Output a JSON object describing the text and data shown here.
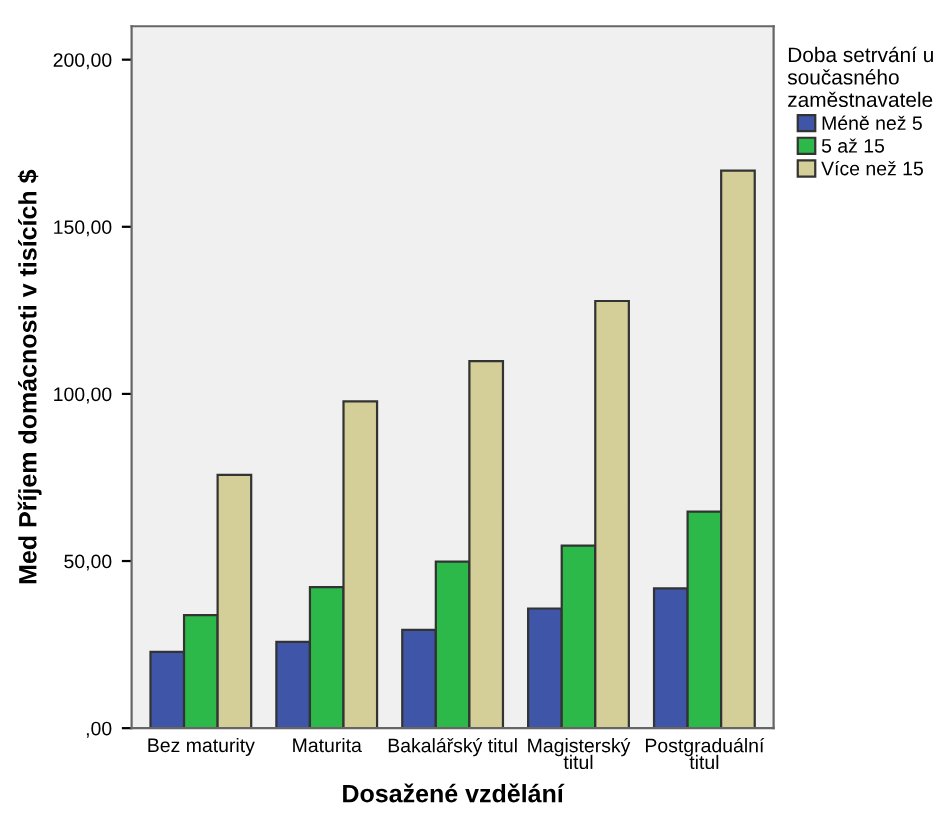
{
  "chart_data": {
    "type": "bar",
    "xlabel": "Dosažené vzdělání",
    "ylabel": "Med Příjem domácnosti v tisících $",
    "legend_title": "Doba setrvání u\nsoučasného\nzaměstnavatele",
    "legend": "top right",
    "grid": false,
    "categories": [
      "Bez maturity",
      "Maturita",
      "Bakalářský titul",
      "Magisterský\ntitul",
      "Postgraduální\ntitul"
    ],
    "ylim": [
      0,
      210
    ],
    "yticks": [
      {
        "value": 0,
        "label": ",00"
      },
      {
        "value": 50,
        "label": "50,00"
      },
      {
        "value": 100,
        "label": "100,00"
      },
      {
        "value": 150,
        "label": "150,00"
      },
      {
        "value": 200,
        "label": "200,00"
      }
    ],
    "series": [
      {
        "name": "Méně než 5",
        "color": "#3e55a8",
        "values": [
          22.8,
          25.8,
          29.4,
          35.8,
          41.8
        ]
      },
      {
        "name": "5 až 15",
        "color": "#2db84a",
        "values": [
          33.8,
          42.2,
          49.8,
          54.6,
          64.8
        ]
      },
      {
        "name": "Více než 15",
        "color": "#d4cf98",
        "values": [
          75.8,
          97.8,
          109.8,
          127.8,
          166.8
        ]
      }
    ]
  }
}
